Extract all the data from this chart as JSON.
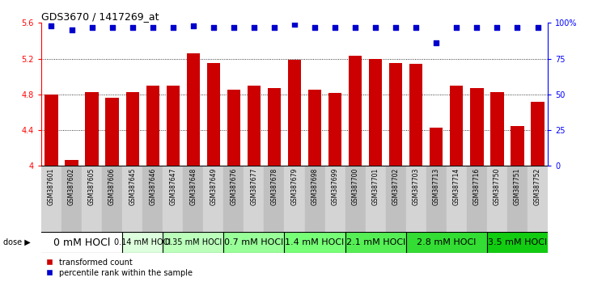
{
  "title": "GDS3670 / 1417269_at",
  "samples": [
    "GSM387601",
    "GSM387602",
    "GSM387605",
    "GSM387606",
    "GSM387645",
    "GSM387646",
    "GSM387647",
    "GSM387648",
    "GSM387649",
    "GSM387676",
    "GSM387677",
    "GSM387678",
    "GSM387679",
    "GSM387698",
    "GSM387699",
    "GSM387700",
    "GSM387701",
    "GSM387702",
    "GSM387703",
    "GSM387713",
    "GSM387714",
    "GSM387716",
    "GSM387750",
    "GSM387751",
    "GSM387752"
  ],
  "bar_values": [
    4.8,
    4.07,
    4.83,
    4.76,
    4.83,
    4.9,
    4.9,
    5.26,
    5.15,
    4.85,
    4.9,
    4.87,
    5.19,
    4.85,
    4.82,
    5.23,
    5.2,
    5.15,
    5.14,
    4.43,
    4.9,
    4.87,
    4.83,
    4.45,
    4.72
  ],
  "percentile_values": [
    98,
    95,
    97,
    97,
    97,
    97,
    97,
    98,
    97,
    97,
    97,
    97,
    99,
    97,
    97,
    97,
    97,
    97,
    97,
    86,
    97,
    97,
    97,
    97,
    97
  ],
  "bar_color": "#cc0000",
  "dot_color": "#0000cc",
  "ylim_left": [
    4.0,
    5.6
  ],
  "ylim_right": [
    0,
    100
  ],
  "yticks_left": [
    4.0,
    4.4,
    4.8,
    5.2,
    5.6
  ],
  "yticks_right": [
    0,
    25,
    50,
    75,
    100
  ],
  "ytick_labels_left": [
    "4",
    "4.4",
    "4.8",
    "5.2",
    "5.6"
  ],
  "ytick_labels_right": [
    "0",
    "25",
    "50",
    "75",
    "100%"
  ],
  "gridlines": [
    4.4,
    4.8,
    5.2
  ],
  "dose_groups": [
    {
      "label": "0 mM HOCl",
      "start": 0,
      "end": 4,
      "color": "#ffffff",
      "fontsize": 9
    },
    {
      "label": "0.14 mM HOCl",
      "start": 4,
      "end": 6,
      "color": "#ddffdd",
      "fontsize": 7
    },
    {
      "label": "0.35 mM HOCl",
      "start": 6,
      "end": 9,
      "color": "#bbffbb",
      "fontsize": 7
    },
    {
      "label": "0.7 mM HOCl",
      "start": 9,
      "end": 12,
      "color": "#99ff99",
      "fontsize": 8
    },
    {
      "label": "1.4 mM HOCl",
      "start": 12,
      "end": 15,
      "color": "#77ff77",
      "fontsize": 8
    },
    {
      "label": "2.1 mM HOCl",
      "start": 15,
      "end": 18,
      "color": "#55ee55",
      "fontsize": 8
    },
    {
      "label": "2.8 mM HOCl",
      "start": 18,
      "end": 22,
      "color": "#33dd33",
      "fontsize": 8
    },
    {
      "label": "3.5 mM HOCl",
      "start": 22,
      "end": 25,
      "color": "#11cc11",
      "fontsize": 8
    }
  ],
  "legend_bar_label": "transformed count",
  "legend_dot_label": "percentile rank within the sample"
}
